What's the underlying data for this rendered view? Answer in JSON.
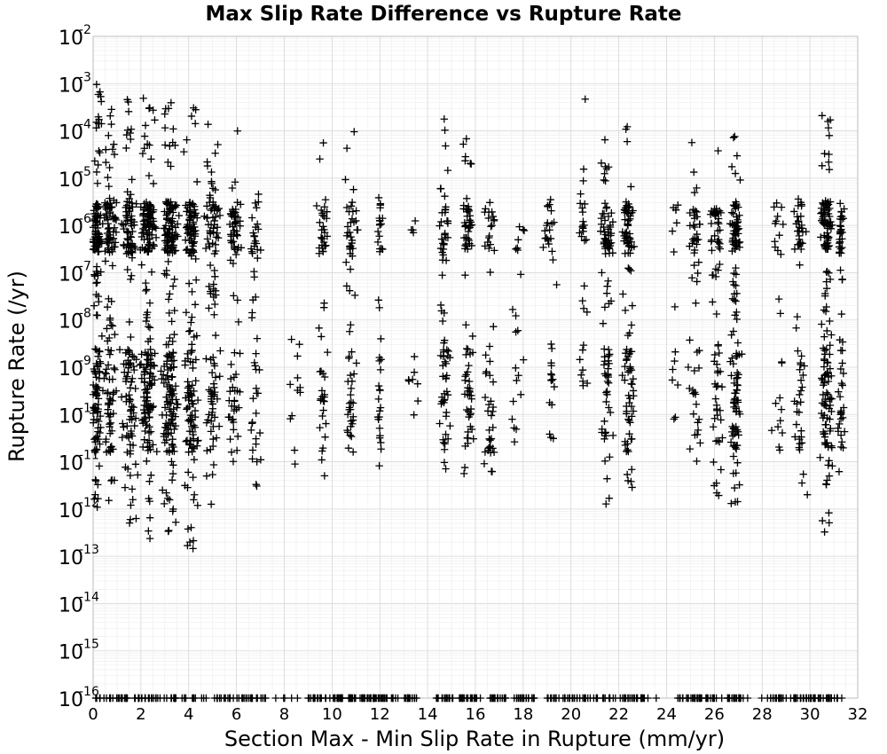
{
  "chart_data": {
    "type": "scatter",
    "title": "Max Slip Rate Difference vs Rupture Rate",
    "xlabel": "Section Max - Min Slip Rate in Rupture (mm/yr)",
    "ylabel": "Rupture Rate (/yr)",
    "xlim": [
      0,
      32
    ],
    "ylim": [
      1e-16,
      0.01
    ],
    "yscale": "log",
    "grid": true,
    "marker": "+",
    "marker_color": "#000000",
    "x_ticks": [
      0,
      2,
      4,
      6,
      8,
      10,
      12,
      14,
      16,
      18,
      20,
      22,
      24,
      26,
      28,
      30,
      32
    ],
    "x_tick_labels": [
      "0",
      "2",
      "4",
      "6",
      "8",
      "10",
      "12",
      "14",
      "16",
      "18",
      "20",
      "22",
      "24",
      "26",
      "28",
      "30",
      "32"
    ],
    "y_tick_exponents": [
      -2,
      -3,
      -4,
      -5,
      -6,
      -7,
      -8,
      -9,
      -10,
      -11,
      -12,
      -13,
      -14,
      -15,
      -16
    ],
    "y_tick_base": "10",
    "clusters": [
      {
        "x": 0.15,
        "spread": 0.25,
        "log_min": -12.2,
        "log_max": -3.0,
        "n": 170
      },
      {
        "x": 0.7,
        "spread": 0.35,
        "log_min": -12.0,
        "log_max": -3.2,
        "n": 130
      },
      {
        "x": 1.5,
        "spread": 0.45,
        "log_min": -12.5,
        "log_max": -3.2,
        "n": 150
      },
      {
        "x": 2.3,
        "spread": 0.4,
        "log_min": -12.8,
        "log_max": -3.3,
        "n": 210
      },
      {
        "x": 3.2,
        "spread": 0.45,
        "log_min": -12.5,
        "log_max": -3.4,
        "n": 210
      },
      {
        "x": 4.1,
        "spread": 0.4,
        "log_min": -13.0,
        "log_max": -3.5,
        "n": 160
      },
      {
        "x": 5.0,
        "spread": 0.4,
        "log_min": -12.0,
        "log_max": -3.8,
        "n": 110
      },
      {
        "x": 5.9,
        "spread": 0.4,
        "log_min": -11.8,
        "log_max": -4.0,
        "n": 80
      },
      {
        "x": 6.8,
        "spread": 0.35,
        "log_min": -11.6,
        "log_max": -4.4,
        "n": 50
      },
      {
        "x": 8.5,
        "spread": 0.5,
        "log_min": -11.3,
        "log_max": -7.8,
        "n": 12
      },
      {
        "x": 9.6,
        "spread": 0.3,
        "log_min": -11.8,
        "log_max": -4.2,
        "n": 55
      },
      {
        "x": 10.8,
        "spread": 0.35,
        "log_min": -11.4,
        "log_max": -4.0,
        "n": 65
      },
      {
        "x": 12.0,
        "spread": 0.15,
        "log_min": -11.1,
        "log_max": -5.0,
        "n": 40
      },
      {
        "x": 13.4,
        "spread": 0.35,
        "log_min": -11.5,
        "log_max": -3.8,
        "n": 12
      },
      {
        "x": 14.7,
        "spread": 0.3,
        "log_min": -11.3,
        "log_max": -3.7,
        "n": 75
      },
      {
        "x": 15.7,
        "spread": 0.3,
        "log_min": -11.6,
        "log_max": -3.6,
        "n": 80
      },
      {
        "x": 16.6,
        "spread": 0.35,
        "log_min": -11.3,
        "log_max": -5.3,
        "n": 50
      },
      {
        "x": 17.8,
        "spread": 0.4,
        "log_min": -11.3,
        "log_max": -6.0,
        "n": 22
      },
      {
        "x": 19.1,
        "spread": 0.4,
        "log_min": -11.0,
        "log_max": -4.7,
        "n": 35
      },
      {
        "x": 20.5,
        "spread": 0.25,
        "log_min": -9.5,
        "log_max": -3.3,
        "n": 30
      },
      {
        "x": 21.5,
        "spread": 0.35,
        "log_min": -12.2,
        "log_max": -4.1,
        "n": 95
      },
      {
        "x": 22.4,
        "spread": 0.35,
        "log_min": -12.5,
        "log_max": -3.8,
        "n": 105
      },
      {
        "x": 24.3,
        "spread": 0.3,
        "log_min": -11.1,
        "log_max": -5.2,
        "n": 15
      },
      {
        "x": 25.2,
        "spread": 0.4,
        "log_min": -11.4,
        "log_max": -4.0,
        "n": 55
      },
      {
        "x": 26.1,
        "spread": 0.35,
        "log_min": -11.9,
        "log_max": -4.0,
        "n": 70
      },
      {
        "x": 26.9,
        "spread": 0.3,
        "log_min": -12.0,
        "log_max": -4.0,
        "n": 135
      },
      {
        "x": 28.7,
        "spread": 0.35,
        "log_min": -11.3,
        "log_max": -5.2,
        "n": 25
      },
      {
        "x": 29.6,
        "spread": 0.35,
        "log_min": -11.8,
        "log_max": -4.4,
        "n": 60
      },
      {
        "x": 30.7,
        "spread": 0.35,
        "log_min": -12.9,
        "log_max": -3.5,
        "n": 160
      },
      {
        "x": 31.3,
        "spread": 0.2,
        "log_min": -11.5,
        "log_max": -5.0,
        "n": 60
      }
    ],
    "density_bands": [
      {
        "log_min": -6.6,
        "log_max": -5.5,
        "weight": 0.35
      },
      {
        "log_min": -10.8,
        "log_max": -8.6,
        "weight": 0.3
      }
    ],
    "floor_points": {
      "y": 1e-16,
      "x_min": 0,
      "x_max": 31.5,
      "n": 420,
      "note_gaps": [
        [
          7.2,
          9.0
        ],
        [
          13.6,
          14.2
        ],
        [
          23.3,
          24.6
        ],
        [
          27.4,
          28.4
        ]
      ]
    },
    "seed": 7
  }
}
